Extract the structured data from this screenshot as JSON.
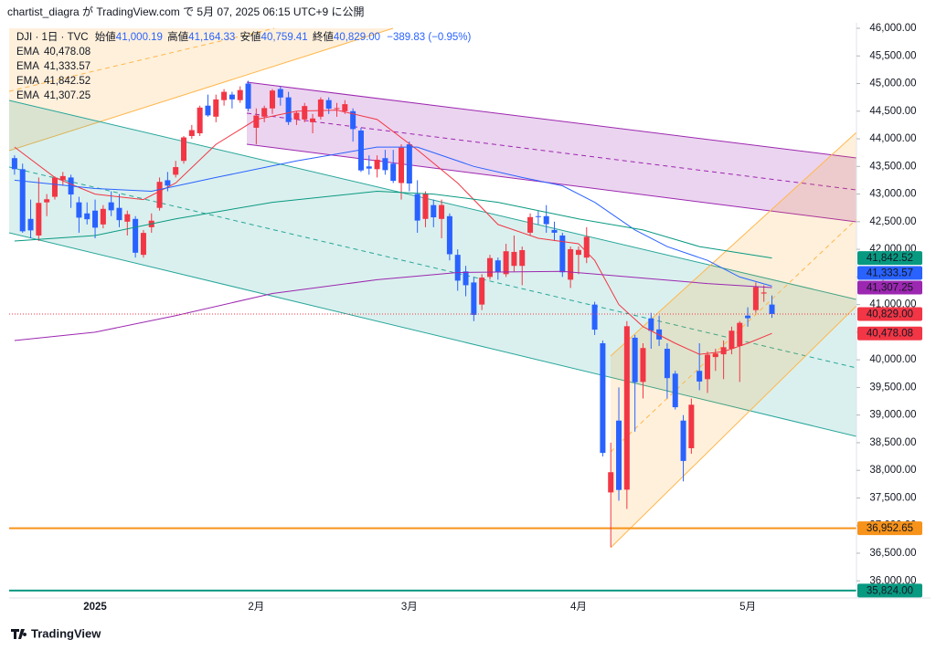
{
  "chart_data": {
    "type": "candlestick",
    "caption": "chartist_diagra が TradingView.com で 5月 07, 2025 06:15 UTC+9 に公開",
    "brand": "TradingView",
    "header": {
      "symbol": "DJI · 1日 · TVC",
      "open_label": "始値",
      "open": {
        "value": 41000.19,
        "label": "41,000.19"
      },
      "high_label": "高値",
      "high": {
        "value": 41164.33,
        "label": "41,164.33"
      },
      "low_label": "安値",
      "low": {
        "value": 40759.41,
        "label": "40,759.41"
      },
      "close_label": "終値",
      "close": {
        "value": 40829.0,
        "label": "40,829.00"
      },
      "change": "−389.83 (−0.95%)"
    },
    "categories": [
      null,
      null,
      null,
      null,
      null,
      null,
      null,
      null,
      null,
      null,
      "2025",
      null,
      null,
      null,
      null,
      null,
      null,
      null,
      null,
      null,
      null,
      null,
      null,
      null,
      null,
      null,
      null,
      null,
      null,
      null,
      "2月",
      null,
      null,
      null,
      null,
      null,
      null,
      null,
      null,
      null,
      null,
      null,
      null,
      null,
      null,
      null,
      null,
      null,
      null,
      "3月",
      null,
      null,
      null,
      null,
      null,
      null,
      null,
      null,
      null,
      null,
      null,
      null,
      null,
      null,
      null,
      null,
      null,
      null,
      null,
      null,
      "4月",
      null,
      null,
      null,
      null,
      null,
      null,
      null,
      null,
      null,
      null,
      null,
      null,
      null,
      null,
      null,
      null,
      null,
      null,
      null,
      null,
      "5月",
      null,
      null,
      null
    ],
    "open": [
      43650,
      43450,
      42550,
      42250,
      42850,
      42950,
      43250,
      43300,
      42850,
      42650,
      42700,
      42450,
      42850,
      42750,
      42500,
      42550,
      41900,
      42400,
      42750,
      43250,
      43350,
      43600,
      44050,
      44100,
      44600,
      44400,
      44700,
      44800,
      44700,
      45000,
      44200,
      44400,
      44550,
      44900,
      44750,
      44350,
      44350,
      44300,
      44400,
      44700,
      44550,
      44500,
      44500,
      44150,
      43500,
      43450,
      43650,
      43550,
      43200,
      43900,
      43000,
      42550,
      42800,
      42550,
      42600,
      41900,
      41600,
      41400,
      41000,
      41500,
      41800,
      41550,
      41700,
      41700,
      42300,
      42600,
      42600,
      42350,
      42250,
      41450,
      41900,
      41850,
      41000,
      40300,
      37600,
      38900,
      37650,
      40400,
      39600,
      40750,
      40550,
      40200,
      39750,
      38900,
      38400,
      39800,
      39650,
      40050,
      40100,
      40200,
      40250,
      40800,
      40900,
      41200,
      41000.19
    ],
    "high": [
      43700,
      43550,
      42900,
      43300,
      43000,
      43320,
      43400,
      43350,
      42950,
      42850,
      42900,
      42800,
      43050,
      43000,
      42700,
      42600,
      42350,
      42650,
      43300,
      43400,
      43600,
      44050,
      44250,
      44600,
      44800,
      44800,
      44900,
      44850,
      44950,
      45050,
      44550,
      44600,
      44900,
      44950,
      44850,
      44500,
      44650,
      44450,
      44750,
      44750,
      44650,
      44700,
      44550,
      44200,
      43700,
      43700,
      43800,
      43800,
      43900,
      43950,
      43250,
      43050,
      42900,
      42900,
      42650,
      42000,
      41700,
      41500,
      41550,
      41900,
      41850,
      42100,
      42250,
      42050,
      42650,
      42700,
      42800,
      42500,
      42300,
      42050,
      42050,
      42400,
      41050,
      40350,
      38500,
      39500,
      40700,
      40450,
      40300,
      40850,
      40800,
      40300,
      39800,
      39000,
      39300,
      40300,
      40150,
      40200,
      40350,
      40600,
      40700,
      40950,
      41400,
      41350,
      41164.33
    ],
    "low": [
      43350,
      42300,
      42200,
      42150,
      42600,
      42900,
      43150,
      42750,
      42300,
      42450,
      42200,
      42380,
      42600,
      42400,
      42250,
      41850,
      41850,
      42300,
      42700,
      43050,
      43300,
      43550,
      44000,
      44050,
      44400,
      44300,
      44600,
      44550,
      44650,
      44500,
      43900,
      44300,
      44450,
      44600,
      44250,
      44250,
      44300,
      44100,
      44350,
      44450,
      44400,
      44450,
      43950,
      43400,
      43350,
      43300,
      43350,
      43200,
      42900,
      43050,
      42300,
      42400,
      42400,
      42200,
      41800,
      41250,
      41150,
      40700,
      40900,
      41450,
      41450,
      41500,
      41600,
      41350,
      42250,
      42450,
      42300,
      42150,
      41500,
      41300,
      41550,
      41750,
      40450,
      38250,
      36611,
      37450,
      37300,
      38700,
      39300,
      40200,
      40250,
      39300,
      39100,
      37800,
      38300,
      39450,
      39400,
      39800,
      39650,
      40100,
      39600,
      40600,
      40850,
      41050,
      40759.41
    ],
    "close": [
      43450,
      42326,
      42342,
      42840,
      42906,
      43297,
      43325,
      42992,
      42573,
      42544,
      42392,
      42732,
      42706,
      42528,
      42635,
      41938,
      42297,
      42518,
      43221,
      43153,
      43488,
      44025,
      44157,
      44565,
      44424,
      44713,
      44850,
      44714,
      44882,
      44545,
      44421,
      44556,
      44873,
      44747,
      44303,
      44470,
      44593,
      44368,
      44711,
      44546,
      44556,
      44627,
      44176,
      43428,
      43461,
      43621,
      43433,
      43239,
      43841,
      43191,
      42520,
      43006,
      42579,
      42801,
      41911,
      41433,
      41350,
      40813,
      41488,
      41841,
      41581,
      41965,
      41953,
      41985,
      42583,
      42587,
      42455,
      42300,
      41584,
      42002,
      41989,
      42226,
      40546,
      38315,
      37966,
      37645,
      40608,
      39594,
      40213,
      40525,
      40368,
      39669,
      39142,
      38170,
      39187,
      39607,
      40093,
      40114,
      40228,
      40527,
      40669,
      40753,
      41317,
      41219,
      40829
    ],
    "up_color": "#f23645",
    "down_color": "#2962ff",
    "lines": [
      {
        "name": "EMA",
        "color": "#f23645",
        "label": "40,478.08",
        "x": [
          0,
          5,
          10,
          16,
          20,
          25,
          30,
          35,
          40,
          45,
          50,
          55,
          60,
          65,
          70,
          72,
          75,
          78,
          82,
          85,
          88,
          91,
          94
        ],
        "values": [
          43850,
          43300,
          43000,
          42900,
          43200,
          43900,
          44350,
          44500,
          44520,
          44350,
          43800,
          43200,
          42450,
          42200,
          42100,
          41800,
          41000,
          40600,
          40300,
          40100,
          40150,
          40300,
          40478.08
        ]
      },
      {
        "name": "EMA",
        "color": "#2962ff",
        "label": "41,333.57",
        "x": [
          0,
          10,
          17,
          25,
          35,
          45,
          50,
          57,
          63,
          68,
          72,
          77,
          81,
          86,
          90,
          94
        ],
        "values": [
          43250,
          43100,
          43050,
          43300,
          43600,
          43850,
          43850,
          43500,
          43300,
          43150,
          42850,
          42350,
          42050,
          41800,
          41500,
          41333.57
        ]
      },
      {
        "name": "EMA",
        "color": "#089981",
        "label": "41,842.52",
        "x": [
          0,
          10,
          20,
          32,
          45,
          52,
          60,
          70,
          78,
          85,
          94
        ],
        "values": [
          42150,
          42250,
          42550,
          42850,
          43050,
          43000,
          42850,
          42550,
          42350,
          42050,
          41842.52
        ]
      },
      {
        "name": "EMA",
        "color": "#9c27b0",
        "label": "41,307.25",
        "x": [
          0,
          10,
          20,
          32,
          45,
          55,
          68,
          78,
          86,
          94
        ],
        "values": [
          40350,
          40500,
          40800,
          41200,
          41450,
          41580,
          41600,
          41480,
          41380,
          41307.25
        ]
      }
    ],
    "hlines": [
      {
        "value": 36952.65,
        "label": "36,952.65",
        "color": "#f7931a",
        "text_color": "#131722"
      },
      {
        "value": 35824.0,
        "label": "35,824.00",
        "color": "#089981",
        "text_color": "#ffffff"
      }
    ],
    "ylim": [
      35690,
      46099
    ],
    "yticks": [
      {
        "value": 36000,
        "label": "36,000.00"
      },
      {
        "value": 36500,
        "label": "36,500.00"
      },
      {
        "value": 37000,
        "label": "37,000.00"
      },
      {
        "value": 37500,
        "label": "37,500.00"
      },
      {
        "value": 38000,
        "label": "38,000.00"
      },
      {
        "value": 38500,
        "label": "38,500.00"
      },
      {
        "value": 39000,
        "label": "39,000.00"
      },
      {
        "value": 39500,
        "label": "39,500.00"
      },
      {
        "value": 40000,
        "label": "40,000.00"
      },
      {
        "value": 40500,
        "label": "40,500.00"
      },
      {
        "value": 41000,
        "label": "41,000.00"
      },
      {
        "value": 41500,
        "label": "41,500.00"
      },
      {
        "value": 42000,
        "label": "42,000.00"
      },
      {
        "value": 42500,
        "label": "42,500.00"
      },
      {
        "value": 43000,
        "label": "43,000.00"
      },
      {
        "value": 43500,
        "label": "43,500.00"
      },
      {
        "value": 44000,
        "label": "44,000.00"
      },
      {
        "value": 44500,
        "label": "44,500.00"
      },
      {
        "value": 45000,
        "label": "45,000.00"
      },
      {
        "value": 45500,
        "label": "45,500.00"
      },
      {
        "value": 46000,
        "label": "46,000.00"
      }
    ],
    "grid": false
  }
}
